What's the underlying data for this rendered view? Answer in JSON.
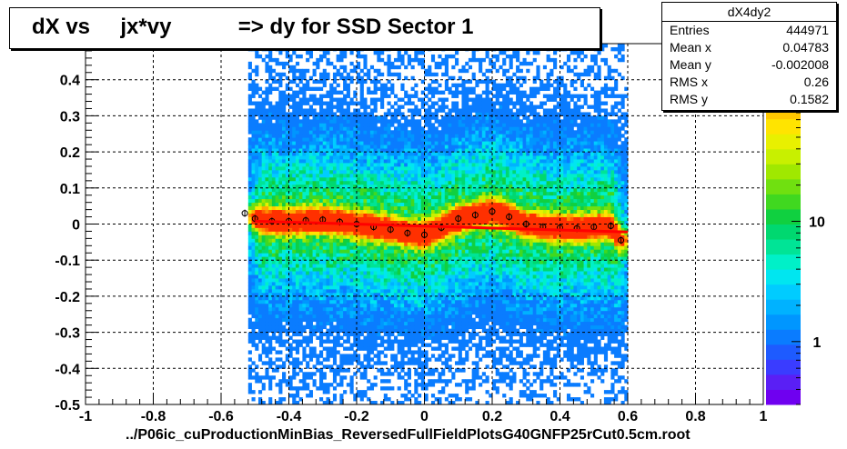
{
  "title": "dX vs     jx*vy           => dy for SSD Sector 1",
  "footer": "../P06ic_cuProductionMinBias_ReversedFullFieldPlotsG40GNFP25rCut0.5cm.root",
  "stats": {
    "name": "dX4dy2",
    "rows": [
      {
        "label": "Entries",
        "value": "444971"
      },
      {
        "label": "Mean x",
        "value": "0.04783"
      },
      {
        "label": "Mean y",
        "value": "-0.002008"
      },
      {
        "label": "RMS x",
        "value": "0.26"
      },
      {
        "label": "RMS y",
        "value": "0.1582"
      }
    ]
  },
  "chart_data": {
    "type": "heatmap",
    "xlim": [
      -1,
      1
    ],
    "ylim": [
      -0.5,
      0.5
    ],
    "grid": true,
    "x_ticks": [
      "-1",
      "-0.8",
      "-0.6",
      "-0.4",
      "-0.2",
      "0",
      "0.2",
      "0.4",
      "0.6",
      "0.8",
      "1"
    ],
    "y_ticks": [
      "-0.5",
      "-0.4",
      "-0.3",
      "-0.2",
      "-0.1",
      "0",
      "0.1",
      "0.2",
      "0.3",
      "0.4"
    ],
    "color_scale": {
      "type": "log",
      "tick_labels": [
        "1",
        "10"
      ]
    },
    "data_x_range": [
      -0.52,
      0.6
    ],
    "profile": {
      "x": [
        -0.53,
        -0.5,
        -0.45,
        -0.4,
        -0.35,
        -0.3,
        -0.25,
        -0.2,
        -0.15,
        -0.1,
        -0.05,
        0,
        0.05,
        0.1,
        0.15,
        0.2,
        0.25,
        0.3,
        0.35,
        0.4,
        0.45,
        0.5,
        0.55,
        0.58
      ],
      "y": [
        0.03,
        0.015,
        0.008,
        0.008,
        0.01,
        0.012,
        0.006,
        0.0,
        -0.008,
        -0.015,
        -0.025,
        -0.03,
        -0.01,
        0.015,
        0.025,
        0.035,
        0.02,
        0.0,
        -0.008,
        -0.01,
        -0.012,
        -0.008,
        -0.005,
        -0.045
      ]
    },
    "fit": {
      "x": [
        -0.5,
        0.6
      ],
      "y": [
        0.008,
        -0.022
      ],
      "color": "#ff0000"
    }
  }
}
